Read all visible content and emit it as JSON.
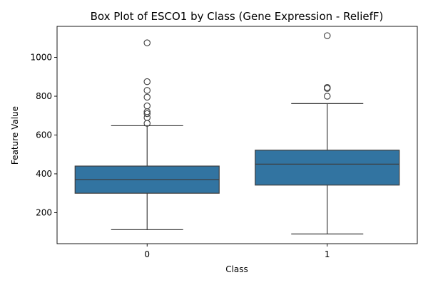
{
  "chart_data": {
    "type": "box",
    "title": "Box Plot of ESCO1 by Class (Gene Expression - ReliefF)",
    "xlabel": "Class",
    "ylabel": "Feature Value",
    "ylim": [
      40,
      1160
    ],
    "yticks": [
      200,
      400,
      600,
      800,
      1000
    ],
    "categories": [
      "0",
      "1"
    ],
    "boxes": [
      {
        "category": "0",
        "whisker_low": 112,
        "q1": 300,
        "median": 370,
        "q3": 440,
        "whisker_high": 648,
        "outliers": [
          660,
          690,
          710,
          720,
          750,
          795,
          830,
          875,
          1075
        ]
      },
      {
        "category": "1",
        "whisker_low": 90,
        "q1": 342,
        "median": 450,
        "q3": 522,
        "whisker_high": 762,
        "outliers": [
          800,
          840,
          845,
          1112
        ]
      }
    ],
    "grid": false,
    "legend": "none",
    "box_color": "#3274a1",
    "line_color": "#3d3d3d"
  }
}
